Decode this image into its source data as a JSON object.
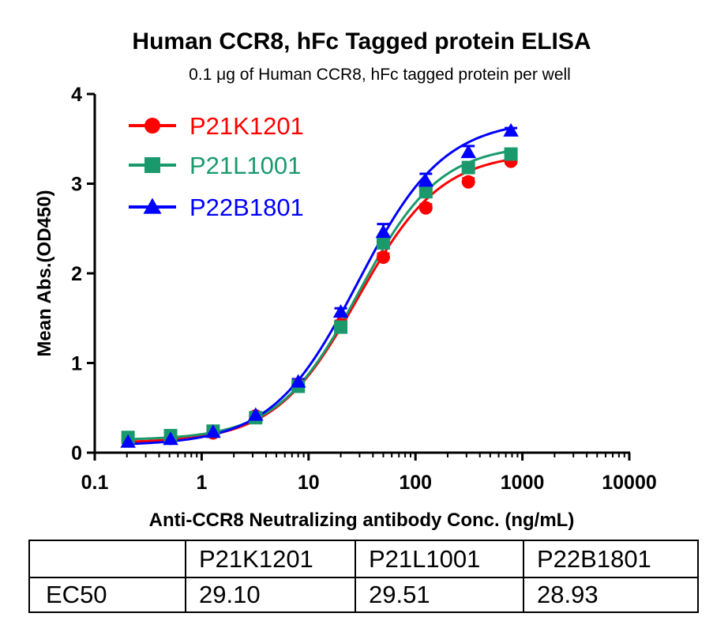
{
  "chart_data": {
    "type": "line",
    "title": "Human CCR8, hFc Tagged protein ELISA",
    "subtitle": "0.1 μg of Human CCR8, hFc tagged protein per well",
    "xlabel": "Anti-CCR8 Neutralizing antibody Conc. (ng/mL)",
    "ylabel": "Mean Abs.(OD450)",
    "xscale": "log",
    "xlim": [
      0.1,
      10000
    ],
    "ylim": [
      0,
      4
    ],
    "x_ticks": [
      "0.1",
      "1",
      "10",
      "100",
      "1000",
      "10000"
    ],
    "y_ticks": [
      "0",
      "1",
      "2",
      "3",
      "4"
    ],
    "legend_position": "top-left",
    "x": [
      0.2048,
      0.512,
      1.28,
      3.2,
      8,
      20,
      50,
      125,
      312.5,
      781.25
    ],
    "series": [
      {
        "name": "P21K1201",
        "color": "#ff0000",
        "marker": "circle",
        "values": [
          0.14,
          0.16,
          0.22,
          0.41,
          0.76,
          1.43,
          2.18,
          2.73,
          3.02,
          3.25
        ],
        "errors": [
          0.02,
          0.02,
          0.02,
          0.02,
          0.03,
          0.04,
          0.04,
          0.04,
          0.04,
          0.03
        ],
        "fit": {
          "bottom": 0.11,
          "top": 3.35,
          "ec50": 29.1,
          "hill": 1.12
        }
      },
      {
        "name": "P21L1001",
        "color": "#1a9a6c",
        "marker": "square",
        "values": [
          0.17,
          0.19,
          0.24,
          0.39,
          0.74,
          1.4,
          2.34,
          2.91,
          3.18,
          3.33
        ],
        "errors": [
          0.02,
          0.02,
          0.02,
          0.02,
          0.03,
          0.04,
          0.05,
          0.04,
          0.04,
          0.03
        ],
        "fit": {
          "bottom": 0.14,
          "top": 3.44,
          "ec50": 29.51,
          "hill": 1.15
        }
      },
      {
        "name": "P22B1801",
        "color": "#0000ff",
        "marker": "triangle",
        "values": [
          0.12,
          0.15,
          0.23,
          0.42,
          0.79,
          1.57,
          2.46,
          3.03,
          3.35,
          3.59
        ],
        "errors": [
          0.02,
          0.02,
          0.02,
          0.02,
          0.03,
          0.04,
          0.09,
          0.08,
          0.07,
          0.03
        ],
        "fit": {
          "bottom": 0.08,
          "top": 3.72,
          "ec50": 28.93,
          "hill": 1.08
        }
      }
    ],
    "table": {
      "header": [
        "",
        "P21K1201",
        "P21L1001",
        "P22B1801"
      ],
      "rows": [
        [
          "EC50",
          "29.10",
          "29.51",
          "28.93"
        ]
      ]
    }
  }
}
